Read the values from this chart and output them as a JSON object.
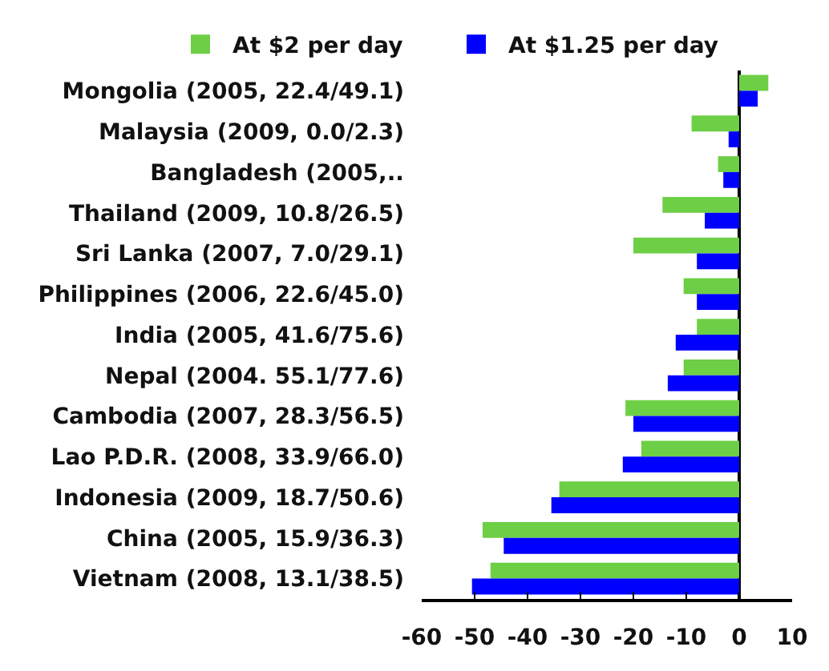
{
  "chart_data": {
    "type": "bar",
    "orientation": "horizontal",
    "categories": [
      "Mongolia (2005, 22.4/49.1)",
      "Malaysia (2009, 0.0/2.3)",
      "Bangladesh (2005,..",
      "Thailand (2009, 10.8/26.5)",
      "Sri Lanka (2007, 7.0/29.1)",
      "Philippines (2006, 22.6/45.0)",
      "India (2005, 41.6/75.6)",
      "Nepal (2004. 55.1/77.6)",
      "Cambodia (2007, 28.3/56.5)",
      "Lao P.D.R. (2008, 33.9/66.0)",
      "Indonesia (2009, 18.7/50.6)",
      "China (2005, 15.9/36.3)",
      "Vietnam (2008, 13.1/38.5)"
    ],
    "series": [
      {
        "name": "At $2 per day",
        "color": "#6dcf45",
        "values": [
          5.5,
          -9,
          -4,
          -14.5,
          -20,
          -10.5,
          -8,
          -10.5,
          -21.5,
          -18.5,
          -34,
          -48.5,
          -47
        ]
      },
      {
        "name": "At $1.25 per day",
        "color": "#0000ff",
        "values": [
          3.5,
          -2,
          -3,
          -6.5,
          -8,
          -8,
          -12,
          -13.5,
          -20,
          -22,
          -35.5,
          -44.5,
          -50.5
        ]
      }
    ],
    "xlim": [
      -60,
      10
    ],
    "xticks": [
      -60,
      -50,
      -40,
      -30,
      -20,
      -10,
      0,
      10
    ],
    "legend": "top"
  }
}
